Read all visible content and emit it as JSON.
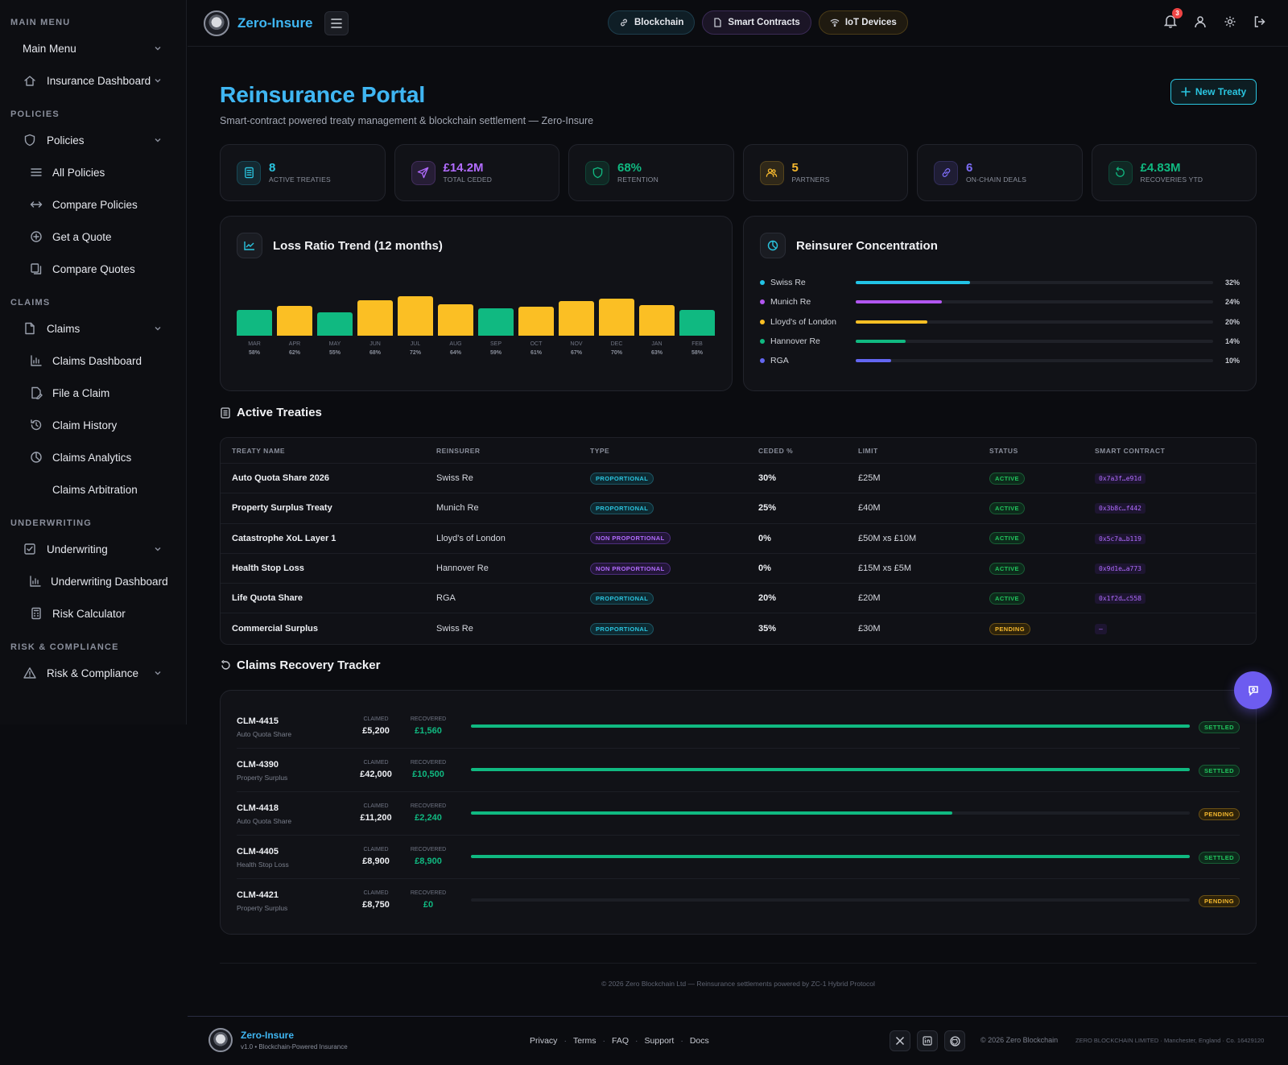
{
  "app": {
    "name": "Zero-Insure"
  },
  "sidebar": {
    "sections": [
      {
        "title": "Main Menu",
        "items": [
          {
            "label": "Main Menu",
            "icon": "none",
            "type": "parent"
          },
          {
            "label": "Insurance Dashboard",
            "icon": "home-icon",
            "type": "parent"
          }
        ]
      },
      {
        "title": "Policies",
        "items": [
          {
            "label": "Policies",
            "icon": "shield-icon",
            "type": "parent"
          },
          {
            "label": "All Policies",
            "icon": "list-icon",
            "type": "sub"
          },
          {
            "label": "Compare Policies",
            "icon": "arrows-icon",
            "type": "sub"
          },
          {
            "label": "Get a Quote",
            "icon": "plus-circle-icon",
            "type": "sub"
          },
          {
            "label": "Compare Quotes",
            "icon": "copy-icon",
            "type": "sub"
          }
        ]
      },
      {
        "title": "Claims",
        "items": [
          {
            "label": "Claims",
            "icon": "file-icon",
            "type": "parent"
          },
          {
            "label": "Claims Dashboard",
            "icon": "bar-chart-icon",
            "type": "sub"
          },
          {
            "label": "File a Claim",
            "icon": "file-edit-icon",
            "type": "sub"
          },
          {
            "label": "Claim History",
            "icon": "history-icon",
            "type": "sub"
          },
          {
            "label": "Claims Analytics",
            "icon": "pie-icon",
            "type": "sub"
          },
          {
            "label": "Claims Arbitration",
            "icon": "none",
            "type": "sub"
          }
        ]
      },
      {
        "title": "Underwriting",
        "items": [
          {
            "label": "Underwriting",
            "icon": "check-square-icon",
            "type": "parent"
          },
          {
            "label": "Underwriting Dashboard",
            "icon": "bar-chart-icon",
            "type": "sub"
          },
          {
            "label": "Risk Calculator",
            "icon": "calculator-icon",
            "type": "sub"
          }
        ]
      },
      {
        "title": "Risk & Compliance",
        "items": [
          {
            "label": "Risk & Compliance",
            "icon": "warning-icon",
            "type": "parent"
          }
        ]
      }
    ]
  },
  "topbar": {
    "pills": [
      {
        "label": "Blockchain",
        "icon": "link-icon"
      },
      {
        "label": "Smart Contracts",
        "icon": "document-icon"
      },
      {
        "label": "IoT Devices",
        "icon": "wifi-icon"
      }
    ],
    "notification_count": "3"
  },
  "page": {
    "title": "Reinsurance Portal",
    "subtitle": "Smart-contract powered treaty management & blockchain settlement — Zero-Insure",
    "new_button": "New Treaty"
  },
  "stats": [
    {
      "value": "8",
      "caption": "Active Treaties",
      "color": "#2ac5e0",
      "icon": "document-icon"
    },
    {
      "value": "£14.2M",
      "caption": "Total Ceded",
      "color": "#b26cff",
      "icon": "send-icon"
    },
    {
      "value": "68%",
      "caption": "Retention",
      "color": "#10b981",
      "icon": "shield-icon"
    },
    {
      "value": "5",
      "caption": "Partners",
      "color": "#f5b82e",
      "icon": "users-icon"
    },
    {
      "value": "6",
      "caption": "On-Chain Deals",
      "color": "#7c6cf5",
      "icon": "link-icon"
    },
    {
      "value": "£4.83M",
      "caption": "Recoveries YTD",
      "color": "#10b981",
      "icon": "refresh-icon"
    }
  ],
  "chart_data": {
    "type": "bar",
    "title": "Loss Ratio Trend (12 months)",
    "categories": [
      "MAR",
      "APR",
      "MAY",
      "JUN",
      "JUL",
      "AUG",
      "SEP",
      "OCT",
      "NOV",
      "DEC",
      "JAN",
      "FEB"
    ],
    "values": [
      58,
      62,
      55,
      68,
      72,
      64,
      59,
      61,
      67,
      70,
      63,
      58
    ],
    "value_labels": [
      "58%",
      "62%",
      "55%",
      "68%",
      "72%",
      "64%",
      "59%",
      "61%",
      "67%",
      "70%",
      "63%",
      "58%"
    ],
    "bar_colors": [
      "#10b981",
      "#fbbf24",
      "#10b981",
      "#fbbf24",
      "#fbbf24",
      "#fbbf24",
      "#10b981",
      "#fbbf24",
      "#fbbf24",
      "#fbbf24",
      "#fbbf24",
      "#10b981"
    ],
    "ylim": [
      0,
      80
    ]
  },
  "concentration": {
    "title": "Reinsurer Concentration",
    "items": [
      {
        "name": "Swiss Re",
        "pct": 32,
        "label": "32%",
        "color": "#22c3e6"
      },
      {
        "name": "Munich Re",
        "pct": 24,
        "label": "24%",
        "color": "#b256f0"
      },
      {
        "name": "Lloyd's of London",
        "pct": 20,
        "label": "20%",
        "color": "#fbbf24"
      },
      {
        "name": "Hannover Re",
        "pct": 14,
        "label": "14%",
        "color": "#10b981"
      },
      {
        "name": "RGA",
        "pct": 10,
        "label": "10%",
        "color": "#6366f1"
      }
    ]
  },
  "treaties": {
    "title": "Active Treaties",
    "headers": [
      "Treaty Name",
      "Reinsurer",
      "Type",
      "Ceded %",
      "Limit",
      "Status",
      "Smart Contract"
    ],
    "rows": [
      {
        "name": "Auto Quota Share 2026",
        "reinsurer": "Swiss Re",
        "type": "Proportional",
        "type_class": "prop",
        "ceded": "30%",
        "limit": "£25M",
        "status": "Active",
        "status_class": "active",
        "contract": "0x7a3f…e91d"
      },
      {
        "name": "Property Surplus Treaty",
        "reinsurer": "Munich Re",
        "type": "Proportional",
        "type_class": "prop",
        "ceded": "25%",
        "limit": "£40M",
        "status": "Active",
        "status_class": "active",
        "contract": "0x3b8c…f442"
      },
      {
        "name": "Catastrophe XoL Layer 1",
        "reinsurer": "Lloyd's of London",
        "type": "Non Proportional",
        "type_class": "nonprop",
        "ceded": "0%",
        "limit": "£50M xs £10M",
        "status": "Active",
        "status_class": "active",
        "contract": "0x5c7a…b119"
      },
      {
        "name": "Health Stop Loss",
        "reinsurer": "Hannover Re",
        "type": "Non Proportional",
        "type_class": "nonprop",
        "ceded": "0%",
        "limit": "£15M xs £5M",
        "status": "Active",
        "status_class": "active",
        "contract": "0x9d1e…a773"
      },
      {
        "name": "Life Quota Share",
        "reinsurer": "RGA",
        "type": "Proportional",
        "type_class": "prop",
        "ceded": "20%",
        "limit": "£20M",
        "status": "Active",
        "status_class": "active",
        "contract": "0x1f2d…c558"
      },
      {
        "name": "Commercial Surplus",
        "reinsurer": "Swiss Re",
        "type": "Proportional",
        "type_class": "prop",
        "ceded": "35%",
        "limit": "£30M",
        "status": "Pending",
        "status_class": "pending",
        "contract": "—"
      }
    ]
  },
  "recovery": {
    "title": "Claims Recovery Tracker",
    "claimed_label": "Claimed",
    "recovered_label": "Recovered",
    "rows": [
      {
        "id": "CLM-4415",
        "treaty": "Auto Quota Share",
        "claimed": "£5,200",
        "recovered": "£1,560",
        "progress": 1.0,
        "status": "Settled",
        "status_class": "active"
      },
      {
        "id": "CLM-4390",
        "treaty": "Property Surplus",
        "claimed": "£42,000",
        "recovered": "£10,500",
        "progress": 1.0,
        "status": "Settled",
        "status_class": "active"
      },
      {
        "id": "CLM-4418",
        "treaty": "Auto Quota Share",
        "claimed": "£11,200",
        "recovered": "£2,240",
        "progress": 0.67,
        "status": "Pending",
        "status_class": "pending"
      },
      {
        "id": "CLM-4405",
        "treaty": "Health Stop Loss",
        "claimed": "£8,900",
        "recovered": "£8,900",
        "progress": 1.0,
        "status": "Settled",
        "status_class": "active"
      },
      {
        "id": "CLM-4421",
        "treaty": "Property Surplus",
        "claimed": "£8,750",
        "recovered": "£0",
        "progress": 0.0,
        "status": "Pending",
        "status_class": "pending"
      }
    ]
  },
  "copyright_line": "© 2026 Zero Blockchain Ltd — Reinsurance settlements powered by ZC-1 Hybrid Protocol",
  "footer": {
    "brand": "Zero-Insure",
    "version": "v1.0 • Blockchain-Powered Insurance",
    "links": [
      "Privacy",
      "Terms",
      "FAQ",
      "Support",
      "Docs"
    ],
    "copyright": "© 2026 Zero Blockchain",
    "legal": "ZERO BLOCKCHAIN LIMITED · Manchester, England · Co. 16429120"
  }
}
